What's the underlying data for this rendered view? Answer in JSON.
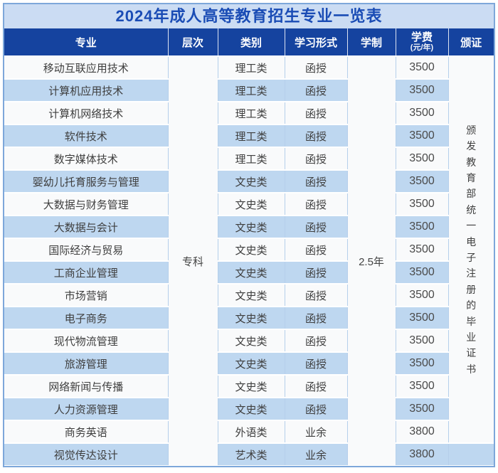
{
  "title": "2024年成人高等教育招生专业一览表",
  "table": {
    "headers": {
      "major": "专业",
      "level": "层次",
      "category": "类别",
      "study_form": "学习形式",
      "duration": "学制",
      "tuition": "学费",
      "tuition_unit": "(元/年)",
      "certificate": "颁证"
    },
    "merged": {
      "level": "专科",
      "duration": "2.5年",
      "certificate": "颁发教育部统一电子注册的毕业证书"
    },
    "rows": [
      {
        "major": "移动互联应用技术",
        "category": "理工类",
        "study_form": "函授",
        "tuition": "3500"
      },
      {
        "major": "计算机应用技术",
        "category": "理工类",
        "study_form": "函授",
        "tuition": "3500"
      },
      {
        "major": "计算机网络技术",
        "category": "理工类",
        "study_form": "函授",
        "tuition": "3500"
      },
      {
        "major": "软件技术",
        "category": "理工类",
        "study_form": "函授",
        "tuition": "3500"
      },
      {
        "major": "数字媒体技术",
        "category": "理工类",
        "study_form": "函授",
        "tuition": "3500"
      },
      {
        "major": "婴幼儿托育服务与管理",
        "category": "文史类",
        "study_form": "函授",
        "tuition": "3500"
      },
      {
        "major": "大数据与财务管理",
        "category": "文史类",
        "study_form": "函授",
        "tuition": "3500"
      },
      {
        "major": "大数据与会计",
        "category": "文史类",
        "study_form": "函授",
        "tuition": "3500"
      },
      {
        "major": "国际经济与贸易",
        "category": "文史类",
        "study_form": "函授",
        "tuition": "3500"
      },
      {
        "major": "工商企业管理",
        "category": "文史类",
        "study_form": "函授",
        "tuition": "3500"
      },
      {
        "major": "市场营销",
        "category": "文史类",
        "study_form": "函授",
        "tuition": "3500"
      },
      {
        "major": "电子商务",
        "category": "文史类",
        "study_form": "函授",
        "tuition": "3500"
      },
      {
        "major": "现代物流管理",
        "category": "文史类",
        "study_form": "函授",
        "tuition": "3500"
      },
      {
        "major": "旅游管理",
        "category": "文史类",
        "study_form": "函授",
        "tuition": "3500"
      },
      {
        "major": "网络新闻与传播",
        "category": "文史类",
        "study_form": "函授",
        "tuition": "3500"
      },
      {
        "major": "人力资源管理",
        "category": "文史类",
        "study_form": "函授",
        "tuition": "3500"
      },
      {
        "major": "商务英语",
        "category": "外语类",
        "study_form": "业余",
        "tuition": "3800"
      },
      {
        "major": "视觉传达设计",
        "category": "艺术类",
        "study_form": "业余",
        "tuition": "3800"
      }
    ]
  },
  "colors": {
    "header_bg": "#15439f",
    "title_bg": "#cbdcf3",
    "title_text": "#1a4cb5",
    "row_bg": "#f9fafb",
    "row_alt_bg": "#bed7f0",
    "column_border": "#b5cfeb",
    "outer_border": "#7da7da",
    "body_text": "#3e3e3e"
  }
}
